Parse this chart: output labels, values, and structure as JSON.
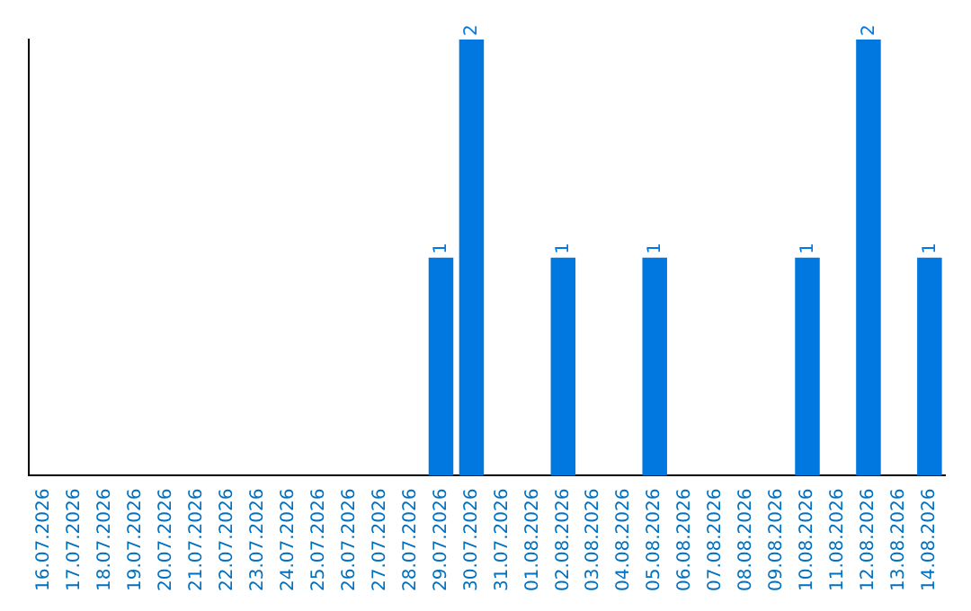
{
  "chart_data": {
    "type": "bar",
    "categories": [
      "16.07.2026",
      "17.07.2026",
      "18.07.2026",
      "19.07.2026",
      "20.07.2026",
      "21.07.2026",
      "22.07.2026",
      "23.07.2026",
      "24.07.2026",
      "25.07.2026",
      "26.07.2026",
      "27.07.2026",
      "28.07.2026",
      "29.07.2026",
      "30.07.2026",
      "31.07.2026",
      "01.08.2026",
      "02.08.2026",
      "03.08.2026",
      "04.08.2026",
      "05.08.2026",
      "06.08.2026",
      "07.08.2026",
      "08.08.2026",
      "09.08.2026",
      "10.08.2026",
      "11.08.2026",
      "12.08.2026",
      "13.08.2026",
      "14.08.2026"
    ],
    "values": [
      null,
      null,
      null,
      null,
      null,
      null,
      null,
      null,
      null,
      null,
      null,
      null,
      null,
      1,
      2,
      null,
      null,
      1,
      null,
      null,
      1,
      null,
      null,
      null,
      null,
      1,
      null,
      2,
      null,
      1
    ],
    "data_labels": true,
    "color": "#0078e0",
    "ylim": [
      0,
      2
    ],
    "tick_labels": "x",
    "grid": false,
    "legend": false
  }
}
